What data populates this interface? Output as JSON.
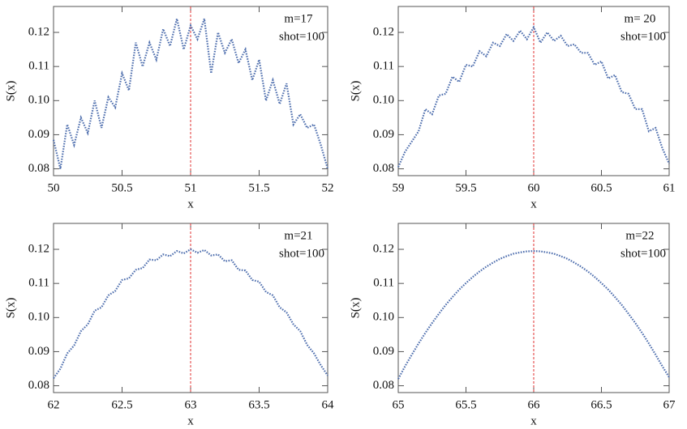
{
  "chart_data": [
    {
      "type": "line",
      "xlabel": "x",
      "ylabel": "S(x)",
      "annotations": [
        "m=17",
        "shot=100"
      ],
      "color": "#4f6fae",
      "line_style": "dotted",
      "vline": {
        "x": 51,
        "color": "#e03030"
      },
      "xlim": [
        50,
        52
      ],
      "ylim": [
        0.078,
        0.1276
      ],
      "xticks": [
        50,
        50.5,
        51,
        51.5,
        52
      ],
      "yticks": [
        0.08,
        0.09,
        {
          "value": 0.1,
          "label": "0.10"
        },
        0.11,
        0.12
      ],
      "x": [
        50,
        50.05,
        50.1,
        50.15,
        50.2,
        50.25,
        50.3,
        50.35,
        50.4,
        50.45,
        50.5,
        50.55,
        50.6,
        50.65,
        50.7,
        50.75,
        50.8,
        50.85,
        50.9,
        50.95,
        51,
        51.05,
        51.1,
        51.15,
        51.2,
        51.25,
        51.3,
        51.35,
        51.4,
        51.45,
        51.5,
        51.55,
        51.6,
        51.65,
        51.7,
        51.75,
        51.8,
        51.85,
        51.9,
        51.95,
        52
      ],
      "values": [
        0.0885,
        0.08,
        0.093,
        0.087,
        0.095,
        0.0905,
        0.1,
        0.092,
        0.101,
        0.098,
        0.108,
        0.103,
        0.117,
        0.11,
        0.117,
        0.112,
        0.121,
        0.116,
        0.124,
        0.115,
        0.122,
        0.118,
        0.124,
        0.108,
        0.12,
        0.114,
        0.118,
        0.111,
        0.115,
        0.106,
        0.112,
        0.1,
        0.106,
        0.099,
        0.105,
        0.093,
        0.096,
        0.092,
        0.093,
        0.087,
        0.08
      ]
    },
    {
      "type": "line",
      "xlabel": "x",
      "ylabel": "S(x)",
      "annotations": [
        "m= 20",
        "shot=100"
      ],
      "color": "#4f6fae",
      "line_style": "dotted",
      "vline": {
        "x": 60,
        "color": "#e03030"
      },
      "xlim": [
        59,
        61
      ],
      "ylim": [
        0.078,
        0.1276
      ],
      "xticks": [
        59,
        59.5,
        60,
        60.5,
        61
      ],
      "yticks": [
        0.08,
        0.09,
        {
          "value": 0.1,
          "label": "0.10"
        },
        0.11,
        0.12
      ],
      "x": [
        59,
        59.05,
        59.1,
        59.15,
        59.2,
        59.25,
        59.3,
        59.35,
        59.4,
        59.45,
        59.5,
        59.55,
        59.6,
        59.65,
        59.7,
        59.75,
        59.8,
        59.85,
        59.9,
        59.95,
        60,
        60.05,
        60.1,
        60.15,
        60.2,
        60.25,
        60.3,
        60.35,
        60.4,
        60.45,
        60.5,
        60.55,
        60.6,
        60.65,
        60.7,
        60.75,
        60.8,
        60.85,
        60.9,
        60.95,
        61
      ],
      "values": [
        0.0805,
        0.085,
        0.088,
        0.091,
        0.0975,
        0.096,
        0.1015,
        0.102,
        0.107,
        0.1055,
        0.1105,
        0.11,
        0.1145,
        0.113,
        0.117,
        0.116,
        0.1195,
        0.1175,
        0.1205,
        0.118,
        0.1215,
        0.117,
        0.12,
        0.1175,
        0.119,
        0.116,
        0.1165,
        0.114,
        0.114,
        0.1105,
        0.1115,
        0.1065,
        0.1075,
        0.1025,
        0.102,
        0.0975,
        0.0975,
        0.091,
        0.092,
        0.086,
        0.0815
      ]
    },
    {
      "type": "line",
      "xlabel": "x",
      "ylabel": "S(x)",
      "annotations": [
        "m=21",
        "shot=100"
      ],
      "color": "#4f6fae",
      "line_style": "dotted",
      "vline": {
        "x": 63,
        "color": "#e03030"
      },
      "xlim": [
        62,
        64
      ],
      "ylim": [
        0.078,
        0.1276
      ],
      "xticks": [
        62,
        62.5,
        63,
        63.5,
        64
      ],
      "yticks": [
        0.08,
        0.09,
        {
          "value": 0.1,
          "label": "0.10"
        },
        0.11,
        0.12
      ],
      "x": [
        62,
        62.05,
        62.1,
        62.15,
        62.2,
        62.25,
        62.3,
        62.35,
        62.4,
        62.45,
        62.5,
        62.55,
        62.6,
        62.65,
        62.7,
        62.75,
        62.8,
        62.85,
        62.9,
        62.95,
        63,
        63.05,
        63.1,
        63.15,
        63.2,
        63.25,
        63.3,
        63.35,
        63.4,
        63.45,
        63.5,
        63.55,
        63.6,
        63.65,
        63.7,
        63.75,
        63.8,
        63.85,
        63.9,
        63.95,
        64
      ],
      "values": [
        0.0822,
        0.085,
        0.0895,
        0.0918,
        0.096,
        0.098,
        0.102,
        0.103,
        0.1065,
        0.1078,
        0.111,
        0.1115,
        0.114,
        0.1145,
        0.117,
        0.1168,
        0.1185,
        0.118,
        0.1195,
        0.1188,
        0.12,
        0.119,
        0.1198,
        0.1182,
        0.1185,
        0.1165,
        0.1168,
        0.114,
        0.1138,
        0.111,
        0.1105,
        0.1075,
        0.1065,
        0.103,
        0.1015,
        0.098,
        0.096,
        0.092,
        0.0895,
        0.086,
        0.083
      ]
    },
    {
      "type": "line",
      "xlabel": "x",
      "ylabel": "S(x)",
      "annotations": [
        "m=22",
        "shot=100"
      ],
      "color": "#4f6fae",
      "line_style": "dotted",
      "vline": {
        "x": 66,
        "color": "#e03030"
      },
      "xlim": [
        65,
        67
      ],
      "ylim": [
        0.078,
        0.1276
      ],
      "xticks": [
        65,
        65.5,
        66,
        66.5,
        67
      ],
      "yticks": [
        0.08,
        0.09,
        {
          "value": 0.1,
          "label": "0.10"
        },
        0.11,
        0.12
      ],
      "x": [
        65,
        65.05,
        65.1,
        65.15,
        65.2,
        65.25,
        65.3,
        65.35,
        65.4,
        65.45,
        65.5,
        65.55,
        65.6,
        65.65,
        65.7,
        65.75,
        65.8,
        65.85,
        65.9,
        65.95,
        66,
        66.05,
        66.1,
        66.15,
        66.2,
        66.25,
        66.3,
        66.35,
        66.4,
        66.45,
        66.5,
        66.55,
        66.6,
        66.65,
        66.7,
        66.75,
        66.8,
        66.85,
        66.9,
        66.95,
        67
      ],
      "values": [
        0.082,
        0.0857,
        0.0891,
        0.0924,
        0.0955,
        0.0984,
        0.1011,
        0.1037,
        0.106,
        0.1082,
        0.1101,
        0.1119,
        0.1135,
        0.1149,
        0.1161,
        0.1172,
        0.118,
        0.1187,
        0.1191,
        0.1194,
        0.1195,
        0.1194,
        0.1191,
        0.1187,
        0.118,
        0.1172,
        0.1161,
        0.1149,
        0.1135,
        0.1119,
        0.1101,
        0.1082,
        0.106,
        0.1037,
        0.1011,
        0.0984,
        0.0955,
        0.0924,
        0.0891,
        0.0857,
        0.0825
      ]
    }
  ]
}
